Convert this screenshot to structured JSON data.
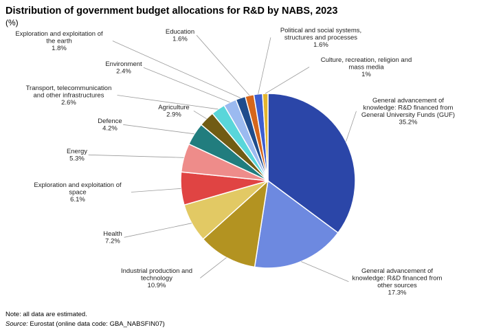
{
  "title": "Distribution of government budget allocations for R&D by NABS, 2023",
  "subtitle": "(%)",
  "note": "Note: all data are estimated.",
  "source_label": "Source:",
  "source_text": "Eurostat (online data code: GBA_NABSFIN07)",
  "chart_data": {
    "type": "pie",
    "title": "Distribution of government budget allocations for R&D by NABS, 2023",
    "unit": "(%)",
    "start": "top, clockwise",
    "slices": [
      {
        "label": [
          "General advancement of",
          "knowledge: R&D financed from",
          "General University Funds (GUF)"
        ],
        "value": 35.2,
        "value_text": "35.2%",
        "color": "#2b46a8"
      },
      {
        "label": [
          "General advancement of",
          "knowledge: R&D financed from",
          "other sources"
        ],
        "value": 17.3,
        "value_text": "17.3%",
        "color": "#6d89e0"
      },
      {
        "label": [
          "Industrial production and",
          "technology"
        ],
        "value": 10.9,
        "value_text": "10.9%",
        "color": "#b39321"
      },
      {
        "label": [
          "Health"
        ],
        "value": 7.2,
        "value_text": "7.2%",
        "color": "#e2c964"
      },
      {
        "label": [
          "Exploration and exploitation of",
          "space"
        ],
        "value": 6.1,
        "value_text": "6.1%",
        "color": "#e04443"
      },
      {
        "label": [
          "Energy"
        ],
        "value": 5.3,
        "value_text": "5.3%",
        "color": "#ee8c8a"
      },
      {
        "label": [
          "Defence"
        ],
        "value": 4.2,
        "value_text": "4.2%",
        "color": "#217d7e"
      },
      {
        "label": [
          "Agriculture"
        ],
        "value": 2.9,
        "value_text": "2.9%",
        "color": "#715c14"
      },
      {
        "label": [
          "Transport, telecommunication",
          "and other infrastructures"
        ],
        "value": 2.6,
        "value_text": "2.6%",
        "color": "#59d6da"
      },
      {
        "label": [
          "Environment"
        ],
        "value": 2.4,
        "value_text": "2.4%",
        "color": "#9bbaf0"
      },
      {
        "label": [
          "Exploration and exploitation of",
          "the earth"
        ],
        "value": 1.8,
        "value_text": "1.8%",
        "color": "#1f4c8c"
      },
      {
        "label": [
          "Education"
        ],
        "value": 1.6,
        "value_text": "1.6%",
        "color": "#d5661c"
      },
      {
        "label": [
          "Political and social systems,",
          "structures and processes"
        ],
        "value": 1.6,
        "value_text": "1.6%",
        "color": "#3d5ed0"
      },
      {
        "label": [
          "Culture, recreation, religion and",
          "mass media"
        ],
        "value": 1,
        "value_text": "1%",
        "color": "#e3b52d"
      }
    ]
  }
}
